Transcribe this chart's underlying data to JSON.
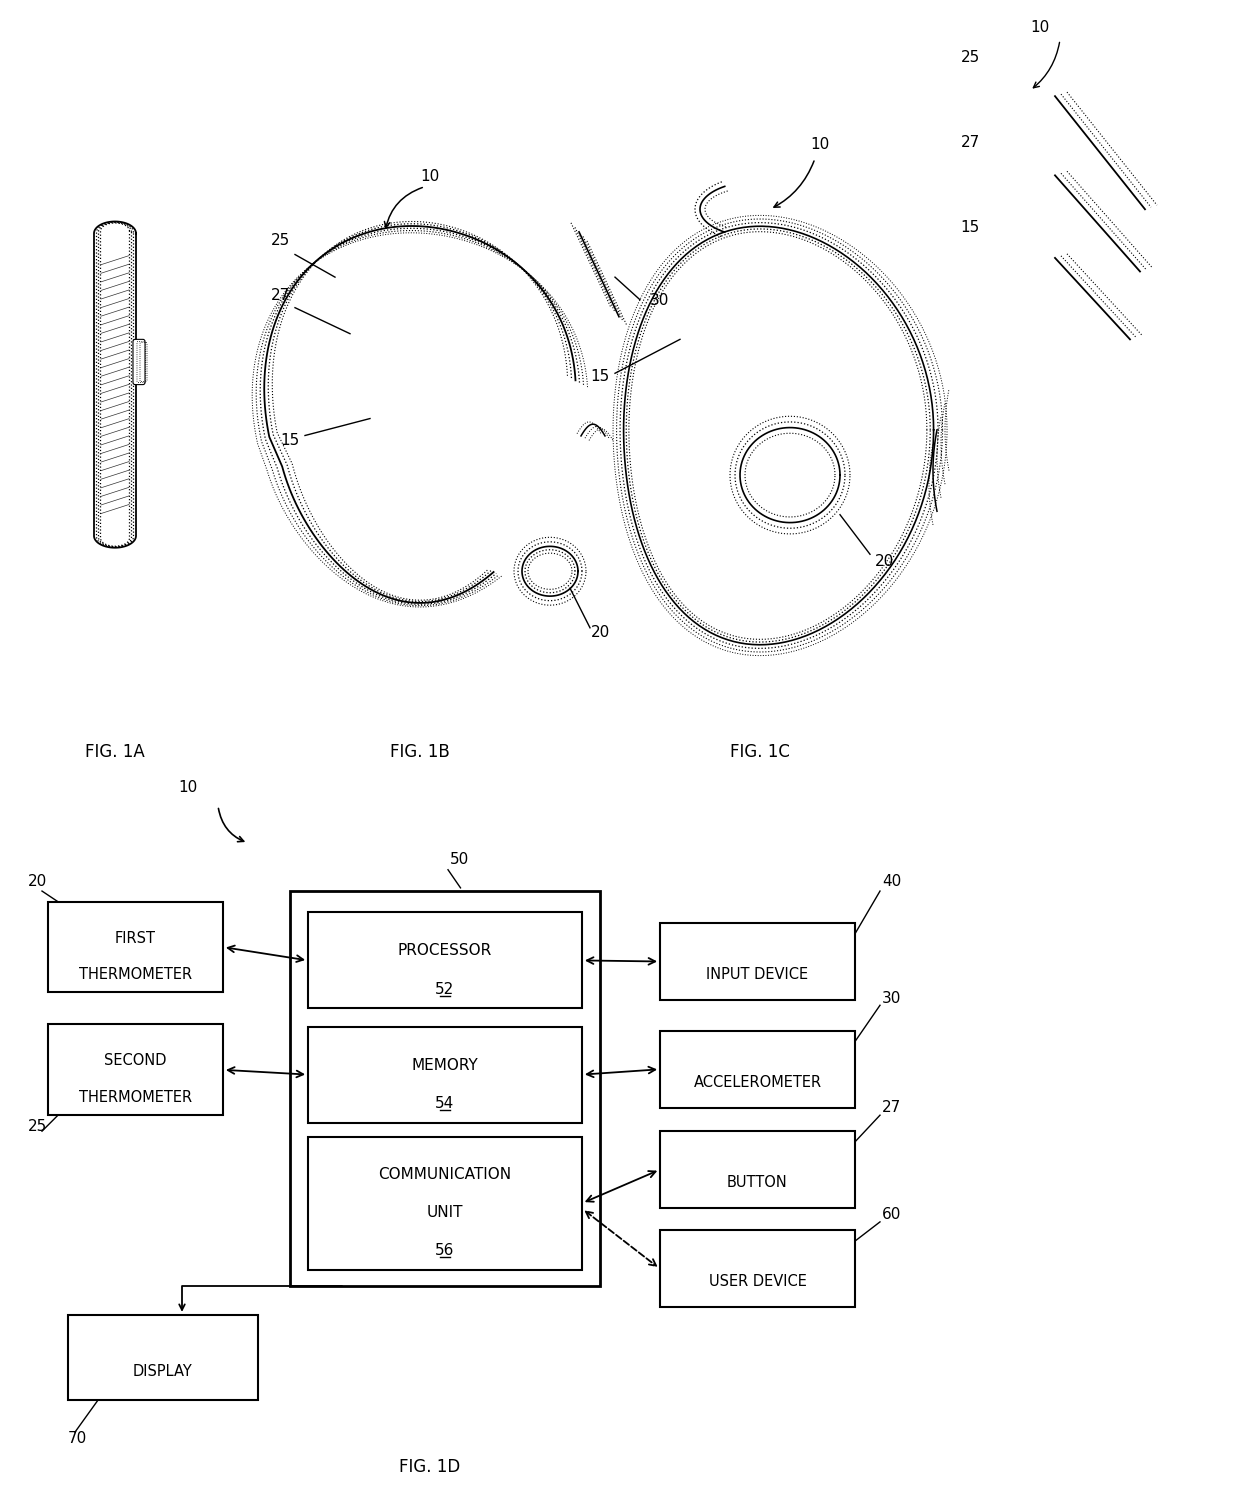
{
  "bg_color": "#ffffff",
  "fig_width": 12.4,
  "fig_height": 14.94,
  "dpi": 100,
  "labels": {
    "fig1a": "FIG. 1A",
    "fig1b": "FIG. 1B",
    "fig1c": "FIG. 1C",
    "fig1d": "FIG. 1D"
  },
  "ref_numbers": {
    "n10": "10",
    "n15": "15",
    "n20": "20",
    "n25": "25",
    "n27": "27",
    "n30": "30",
    "n40": "40",
    "n50": "50",
    "n52": "52",
    "n54": "54",
    "n56": "56",
    "n60": "60",
    "n70": "70"
  },
  "box_texts": {
    "first_therm": "FIRST\nTHERMOMETER",
    "second_therm": "SECOND\nTHERMOMETER",
    "processor": "PROCESSOR\n52",
    "memory": "MEMORY\n54",
    "comm_unit": "COMMUNICATION\nUNIT\n56",
    "input_device": "INPUT DEVICE",
    "accelerometer": "ACCELEROMETER",
    "button": "BUTTON",
    "user_device": "USER DEVICE",
    "display": "DISPLAY"
  }
}
